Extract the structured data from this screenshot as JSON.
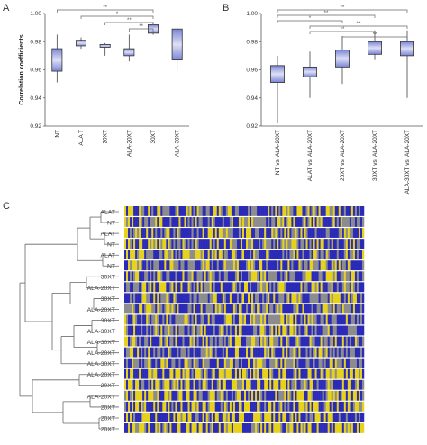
{
  "chart_data": [
    {
      "panel": "A",
      "type": "boxplot",
      "ylabel": "Correlation coefficients",
      "ylim": [
        0.92,
        1.0
      ],
      "yticks": [
        "0.92",
        "0.94",
        "0.96",
        "0.98",
        "1.00"
      ],
      "categories": [
        "NT",
        "ALA T",
        "20XT",
        "ALA-20XT",
        "30XT",
        "ALA-30XT"
      ],
      "boxes": [
        {
          "whisker_low": 0.951,
          "q1": 0.959,
          "q3": 0.975,
          "whisker_high": 0.985
        },
        {
          "whisker_low": 0.975,
          "q1": 0.977,
          "q3": 0.981,
          "whisker_high": 0.983
        },
        {
          "whisker_low": 0.97,
          "q1": 0.976,
          "q3": 0.978,
          "whisker_high": 0.979
        },
        {
          "whisker_low": 0.966,
          "q1": 0.97,
          "q3": 0.975,
          "whisker_high": 0.985
        },
        {
          "whisker_low": 0.985,
          "q1": 0.986,
          "q3": 0.992,
          "whisker_high": 0.994
        },
        {
          "whisker_low": 0.96,
          "q1": 0.967,
          "q3": 0.989,
          "whisker_high": 0.99
        }
      ],
      "significance": [
        {
          "from": 0,
          "to": 4,
          "label": "**"
        },
        {
          "from": 1,
          "to": 4,
          "label": "*"
        },
        {
          "from": 2,
          "to": 4,
          "label": "**"
        },
        {
          "from": 3,
          "to": 4,
          "label": "**"
        }
      ]
    },
    {
      "panel": "B",
      "type": "boxplot",
      "ylabel": "",
      "ylim": [
        0.92,
        1.0
      ],
      "yticks": [
        "0.92",
        "0.94",
        "0.96",
        "0.98",
        "1.00"
      ],
      "categories": [
        "NT vs. ALA-20XT",
        "ALAT vs. ALA-20XT",
        "20XT vs. ALA-20XT",
        "30XT vs. ALA-20XT",
        "ALA-30XT vs. ALA-20XT"
      ],
      "boxes": [
        {
          "whisker_low": 0.922,
          "q1": 0.951,
          "q3": 0.963,
          "whisker_high": 0.97
        },
        {
          "whisker_low": 0.94,
          "q1": 0.955,
          "q3": 0.962,
          "whisker_high": 0.973
        },
        {
          "whisker_low": 0.95,
          "q1": 0.962,
          "q3": 0.974,
          "whisker_high": 0.984
        },
        {
          "whisker_low": 0.967,
          "q1": 0.971,
          "q3": 0.98,
          "whisker_high": 0.988
        },
        {
          "whisker_low": 0.94,
          "q1": 0.97,
          "q3": 0.98,
          "whisker_high": 0.988
        }
      ],
      "significance": [
        {
          "from": 0,
          "to": 4,
          "label": "**"
        },
        {
          "from": 0,
          "to": 3,
          "label": "**"
        },
        {
          "from": 0,
          "to": 2,
          "label": "*"
        },
        {
          "from": 1,
          "to": 4,
          "label": "**"
        },
        {
          "from": 1,
          "to": 3,
          "label": "**"
        },
        {
          "from": 2,
          "to": 4,
          "label": "**"
        }
      ]
    },
    {
      "panel": "C",
      "type": "heatmap",
      "row_labels": [
        "ALAT",
        "NT",
        "ALAT",
        "NT",
        "ALAT",
        "NT",
        "30XT",
        "ALA-20XT",
        "30XT",
        "ALA-20XT",
        "30XT",
        "ALA-30XT",
        "ALA-30XT",
        "ALA-20XT",
        "ALA-30XT",
        "ALA-20XT",
        "20XT",
        "ALA-20XT",
        "20XT",
        "20XT",
        "20XT"
      ],
      "colors": {
        "low": "#2b2bb8",
        "mid": "#8c8c8c",
        "high": "#e6d21a"
      }
    }
  ],
  "panel_labels": {
    "a": "A",
    "b": "B",
    "c": "C"
  }
}
